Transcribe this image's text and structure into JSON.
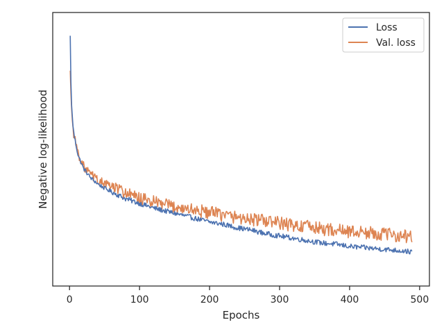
{
  "colors": {
    "loss": "#4c72b0",
    "val_loss": "#dd8452",
    "axes": "#262626",
    "background": "#ffffff"
  },
  "chart_data": {
    "type": "line",
    "title": "",
    "xlabel": "Epochs",
    "ylabel": "Negative log-likelihood",
    "xlim": [
      -24,
      514
    ],
    "ylim": [
      0.45,
      2.8
    ],
    "x_ticks": [
      0,
      100,
      200,
      300,
      400,
      500
    ],
    "y_ticks_visible": false,
    "grid": false,
    "legend": {
      "position": "top-right",
      "entries": [
        "Loss",
        "Val. loss"
      ]
    },
    "x_range": [
      1,
      489
    ],
    "series": [
      {
        "name": "Loss",
        "color": "#4c72b0",
        "noise": 0.012,
        "x": [
          1,
          2,
          3,
          4,
          5,
          6,
          7,
          8,
          10,
          12,
          15,
          18,
          20,
          25,
          30,
          40,
          50,
          60,
          70,
          80,
          90,
          100,
          120,
          140,
          160,
          180,
          200,
          220,
          240,
          260,
          280,
          300,
          320,
          340,
          360,
          380,
          400,
          420,
          440,
          460,
          480,
          489
        ],
        "y": [
          2.6,
          2.2,
          2.0,
          1.9,
          1.83,
          1.77,
          1.73,
          1.7,
          1.64,
          1.58,
          1.53,
          1.49,
          1.46,
          1.42,
          1.38,
          1.33,
          1.29,
          1.26,
          1.23,
          1.2,
          1.18,
          1.16,
          1.12,
          1.09,
          1.06,
          1.03,
          1.0,
          0.98,
          0.95,
          0.93,
          0.9,
          0.88,
          0.86,
          0.84,
          0.82,
          0.81,
          0.79,
          0.78,
          0.77,
          0.76,
          0.75,
          0.74
        ]
      },
      {
        "name": "Val. loss",
        "color": "#dd8452",
        "noise": 0.022,
        "x": [
          1,
          2,
          3,
          4,
          5,
          6,
          7,
          8,
          10,
          12,
          15,
          18,
          20,
          25,
          30,
          40,
          50,
          60,
          70,
          80,
          90,
          100,
          120,
          140,
          160,
          180,
          200,
          220,
          240,
          260,
          280,
          300,
          320,
          340,
          360,
          380,
          400,
          420,
          440,
          460,
          480,
          489
        ],
        "y": [
          2.3,
          2.1,
          1.97,
          1.87,
          1.8,
          1.76,
          1.73,
          1.7,
          1.65,
          1.6,
          1.55,
          1.51,
          1.48,
          1.44,
          1.41,
          1.36,
          1.33,
          1.3,
          1.28,
          1.25,
          1.22,
          1.2,
          1.17,
          1.14,
          1.12,
          1.1,
          1.08,
          1.06,
          1.04,
          1.02,
          1.01,
          0.99,
          0.97,
          0.96,
          0.94,
          0.93,
          0.92,
          0.91,
          0.9,
          0.89,
          0.88,
          0.87
        ]
      }
    ]
  }
}
